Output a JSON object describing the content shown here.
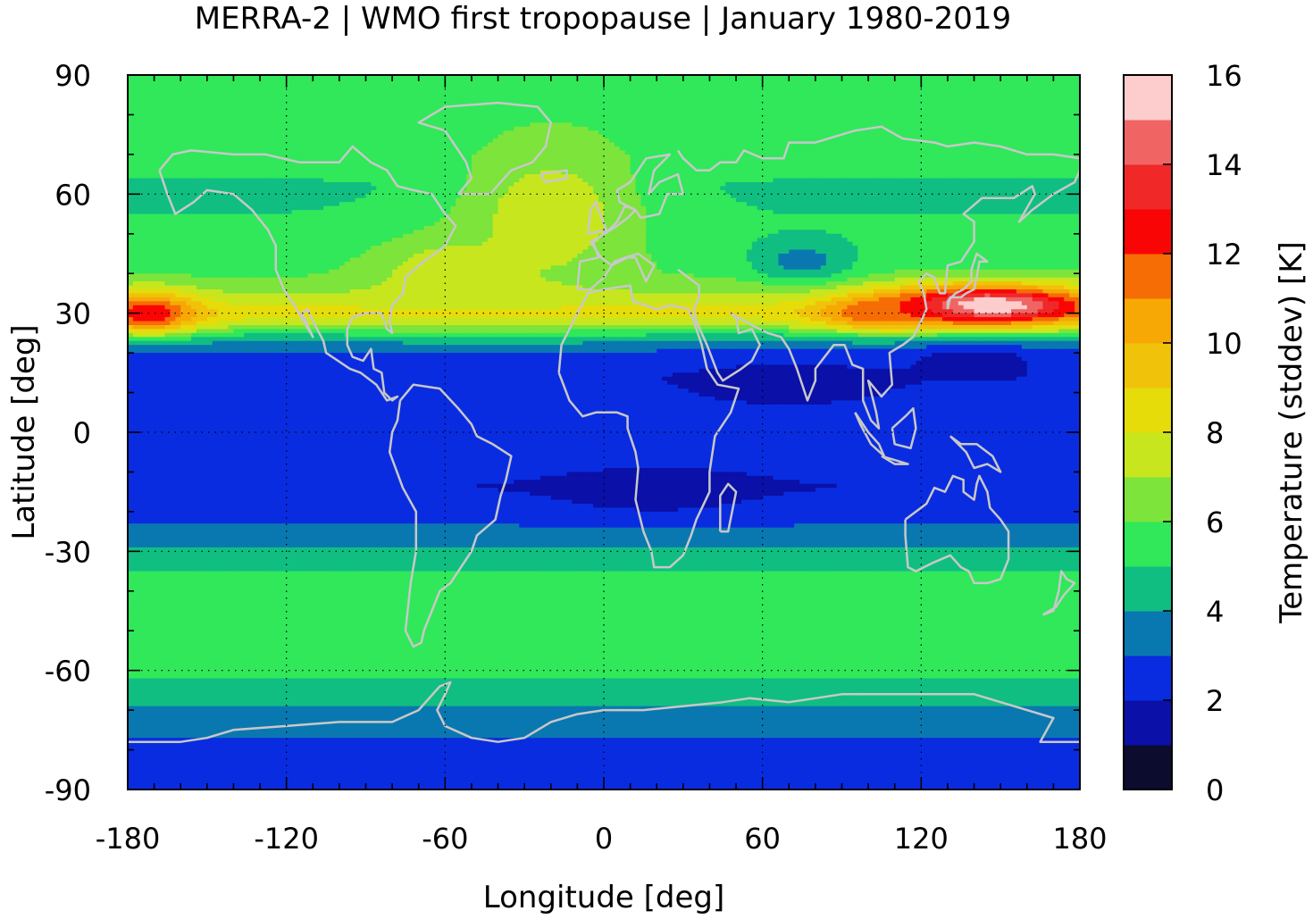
{
  "title": "MERRA-2 | WMO first tropopause | January 1980-2019",
  "chart_data": {
    "type": "heatmap",
    "title": "MERRA-2 | WMO first tropopause | January 1980-2019",
    "xlabel": "Longitude [deg]",
    "ylabel": "Latitude [deg]",
    "colorbar_label": "Temperature (stddev) [K]",
    "xlim": [
      -180,
      180
    ],
    "ylim": [
      -90,
      90
    ],
    "xticks": [
      -180,
      -120,
      -60,
      0,
      60,
      120,
      180
    ],
    "yticks": [
      90,
      60,
      30,
      0,
      -30,
      -60,
      -90
    ],
    "colorbar_ticks": [
      16,
      14,
      12,
      10,
      8,
      6,
      4,
      2,
      0
    ],
    "grid": true,
    "colorbar_levels": [
      {
        "min": 0,
        "max": 1,
        "color": "#0b0c2e"
      },
      {
        "min": 1,
        "max": 2,
        "color": "#0a10a8"
      },
      {
        "min": 2,
        "max": 3,
        "color": "#0a2ce0"
      },
      {
        "min": 3,
        "max": 4,
        "color": "#0a78b0"
      },
      {
        "min": 4,
        "max": 5,
        "color": "#10be82"
      },
      {
        "min": 5,
        "max": 6,
        "color": "#30e85a"
      },
      {
        "min": 6,
        "max": 7,
        "color": "#7ce43a"
      },
      {
        "min": 7,
        "max": 8,
        "color": "#c8e61e"
      },
      {
        "min": 8,
        "max": 9,
        "color": "#e6dc0a"
      },
      {
        "min": 9,
        "max": 10,
        "color": "#f0c20a"
      },
      {
        "min": 10,
        "max": 11,
        "color": "#f7a805"
      },
      {
        "min": 11,
        "max": 12,
        "color": "#f66c05"
      },
      {
        "min": 12,
        "max": 13,
        "color": "#fa0505"
      },
      {
        "min": 13,
        "max": 14,
        "color": "#f02828"
      },
      {
        "min": 14,
        "max": 15,
        "color": "#f06464"
      },
      {
        "min": 15,
        "max": 16,
        "color": "#fdcccc"
      }
    ],
    "zonal_profile": [
      {
        "lat": -90,
        "value": 2.6
      },
      {
        "lat": -80,
        "value": 2.7
      },
      {
        "lat": -73,
        "value": 3.5
      },
      {
        "lat": -65,
        "value": 4.6
      },
      {
        "lat": -58,
        "value": 5.6
      },
      {
        "lat": -48,
        "value": 6.0
      },
      {
        "lat": -40,
        "value": 5.6
      },
      {
        "lat": -32,
        "value": 4.6
      },
      {
        "lat": -25,
        "value": 3.2
      },
      {
        "lat": -14,
        "value": 2.0
      },
      {
        "lat": -5,
        "value": 2.5
      },
      {
        "lat": 5,
        "value": 2.6
      },
      {
        "lat": 14,
        "value": 2.1
      },
      {
        "lat": 20,
        "value": 2.8
      },
      {
        "lat": 24,
        "value": 4.5
      },
      {
        "lat": 27,
        "value": 7.2
      },
      {
        "lat": 30,
        "value": 8.6
      },
      {
        "lat": 34,
        "value": 7.2
      },
      {
        "lat": 40,
        "value": 5.8
      },
      {
        "lat": 48,
        "value": 5.2
      },
      {
        "lat": 55,
        "value": 5.0
      },
      {
        "lat": 62,
        "value": 4.9
      },
      {
        "lat": 70,
        "value": 5.4
      },
      {
        "lat": 80,
        "value": 5.6
      },
      {
        "lat": 90,
        "value": 5.6
      }
    ],
    "hotspots": [
      {
        "lon": -172,
        "lat": 30,
        "peak": 12.8,
        "lon_halfwidth": 18,
        "lat_halfwidth": 5
      },
      {
        "lon": 145,
        "lat": 32,
        "peak": 16.0,
        "lon_halfwidth": 40,
        "lat_halfwidth": 5
      },
      {
        "lon": 105,
        "lat": 30,
        "peak": 12.0,
        "lon_halfwidth": 22,
        "lat_halfwidth": 4
      },
      {
        "lon": -20,
        "lat": 55,
        "peak": 7.8,
        "lon_halfwidth": 35,
        "lat_halfwidth": 18
      },
      {
        "lon": -60,
        "lat": 40,
        "peak": 7.6,
        "lon_halfwidth": 30,
        "lat_halfwidth": 10
      },
      {
        "lon": 75,
        "lat": 43,
        "peak": 3.5,
        "lon_halfwidth": 18,
        "lat_halfwidth": 5
      },
      {
        "lon": 70,
        "lat": 12,
        "peak": 1.5,
        "lon_halfwidth": 40,
        "lat_halfwidth": 6
      },
      {
        "lon": 20,
        "lat": -15,
        "peak": 1.5,
        "lon_halfwidth": 40,
        "lat_halfwidth": 6
      },
      {
        "lon": 140,
        "lat": 18,
        "peak": 1.5,
        "lon_halfwidth": 25,
        "lat_halfwidth": 4
      }
    ]
  },
  "overlay": {
    "coastline_color": "#c8c8c8",
    "grid_color": "#000000"
  }
}
